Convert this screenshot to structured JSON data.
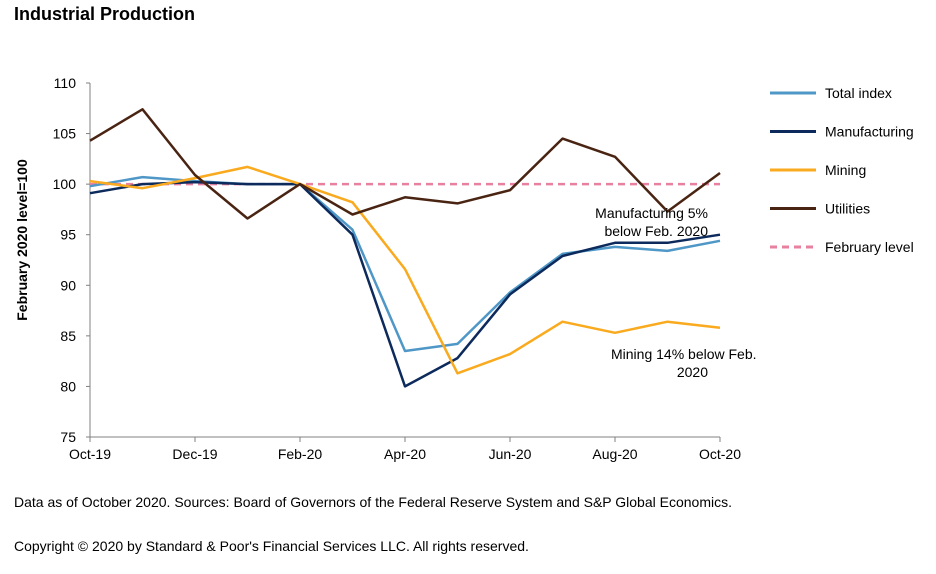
{
  "chart_data": {
    "type": "line",
    "title": "Industrial Production",
    "ylabel": "February 2020 level=100",
    "xlabel": "",
    "ylim": [
      75,
      110
    ],
    "yticks": [
      75,
      80,
      85,
      90,
      95,
      100,
      105,
      110
    ],
    "x": [
      "Oct-19",
      "Nov-19",
      "Dec-19",
      "Jan-20",
      "Feb-20",
      "Mar-20",
      "Apr-20",
      "May-20",
      "Jun-20",
      "Jul-20",
      "Aug-20",
      "Sep-20",
      "Oct-20"
    ],
    "xtick_labels": [
      "Oct-19",
      "Dec-19",
      "Feb-20",
      "Apr-20",
      "Jun-20",
      "Aug-20",
      "Oct-20"
    ],
    "grid": false,
    "legend_position": "right",
    "series": [
      {
        "name": "Total index",
        "color": "#4f97c7",
        "dash": false,
        "values": [
          99.8,
          100.7,
          100.3,
          100.0,
          100.0,
          95.5,
          83.5,
          84.2,
          89.3,
          93.1,
          93.8,
          93.4,
          94.4
        ]
      },
      {
        "name": "Manufacturing",
        "color": "#0c2a5b",
        "dash": false,
        "values": [
          99.1,
          100.0,
          100.2,
          100.0,
          100.0,
          95.0,
          80.0,
          82.8,
          89.1,
          92.9,
          94.2,
          94.2,
          95.0
        ]
      },
      {
        "name": "Mining",
        "color": "#f9aa1e",
        "dash": false,
        "values": [
          100.3,
          99.6,
          100.6,
          101.7,
          100.0,
          98.2,
          91.6,
          81.3,
          83.2,
          86.4,
          85.3,
          86.4,
          85.8
        ]
      },
      {
        "name": "Utilities",
        "color": "#4a2412",
        "dash": false,
        "values": [
          104.3,
          107.4,
          100.9,
          96.6,
          100.0,
          97.0,
          98.7,
          98.1,
          99.4,
          104.5,
          102.7,
          97.3,
          101.1
        ]
      },
      {
        "name": "February level",
        "color": "#e8819f",
        "dash": true,
        "values": [
          100,
          100,
          100,
          100,
          100,
          100,
          100,
          100,
          100,
          100,
          100,
          100,
          100
        ]
      }
    ],
    "annotations": [
      {
        "lines": [
          "Manufacturing 5%",
          "below Feb. 2020"
        ]
      },
      {
        "lines": [
          "Mining 14% below Feb.",
          "2020"
        ]
      }
    ]
  },
  "footer": {
    "note": "Data as of October 2020. Sources: Board of Governors of the Federal Reserve System and S&P Global Economics.",
    "copyright": "Copyright © 2020 by Standard & Poor's Financial Services LLC. All rights reserved."
  }
}
